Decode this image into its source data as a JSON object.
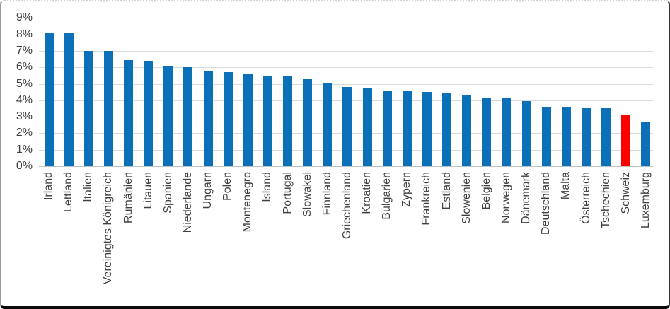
{
  "chart_data": {
    "type": "bar",
    "title": "",
    "xlabel": "",
    "ylabel": "",
    "legend": "none",
    "grid": true,
    "orientation": "vertical",
    "bar_color": "#0c70b8",
    "highlight": {
      "category": "Schweiz",
      "color": "#ff0000"
    },
    "y_axis": {
      "min": 0,
      "max": 9,
      "tick_step": 1,
      "suffix": "%",
      "ticks": [
        0,
        1,
        2,
        3,
        4,
        5,
        6,
        7,
        8,
        9
      ]
    },
    "categories": [
      "Irland",
      "Lettland",
      "Italien",
      "Vereinigtes Königreich",
      "Rumänien",
      "Litauen",
      "Spanien",
      "Niederlande",
      "Ungarn",
      "Polen",
      "Montenegro",
      "Island",
      "Portugal",
      "Slowakei",
      "Finnland",
      "Griechenland",
      "Kroatien",
      "Bulgarien",
      "Zypern",
      "Frankreich",
      "Estland",
      "Slowenien",
      "Belgien",
      "Norwegen",
      "Dänemark",
      "Deutschland",
      "Malta",
      "Österreich",
      "Tschechien",
      "Schweiz",
      "Luxemburg"
    ],
    "values": [
      8.1,
      8.05,
      7.0,
      7.0,
      6.45,
      6.4,
      6.1,
      6.0,
      5.75,
      5.7,
      5.6,
      5.5,
      5.45,
      5.3,
      5.05,
      4.8,
      4.75,
      4.6,
      4.55,
      4.5,
      4.45,
      4.35,
      4.15,
      4.1,
      3.95,
      3.55,
      3.55,
      3.5,
      3.5,
      3.1,
      2.65
    ]
  },
  "colors": {
    "gridline": "#d9d9d9",
    "axis_line": "#bfbfbf",
    "tick_label": "#3f3f3f",
    "background": "#ffffff"
  }
}
